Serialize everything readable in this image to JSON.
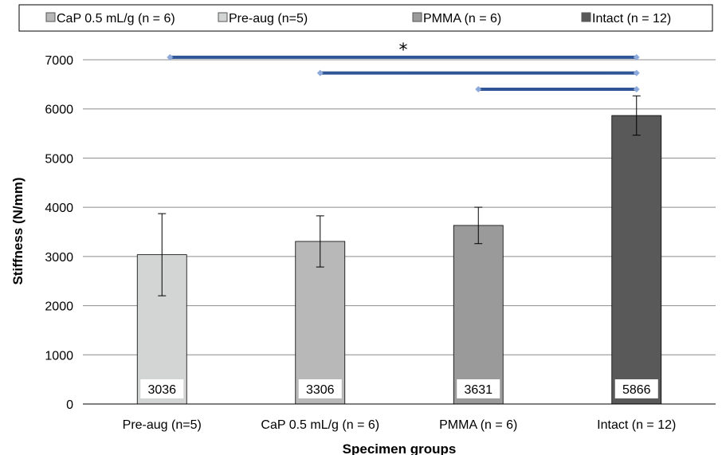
{
  "chart_data": {
    "type": "bar",
    "title": "",
    "xlabel": "Specimen groups",
    "ylabel": "Stiffness (N/mm)",
    "ylim": [
      0,
      7000
    ],
    "yticks": [
      "0",
      "1000",
      "2000",
      "3000",
      "4000",
      "5000",
      "6000",
      "7000"
    ],
    "grid": true,
    "legend_position": "top",
    "categories": [
      "Pre-aug (n=5)",
      "CaP 0.5 mL/g (n = 6)",
      "PMMA (n = 6)",
      "Intact (n = 12)"
    ],
    "values": [
      3036,
      3306,
      3631,
      5866
    ],
    "value_labels": [
      "3036",
      "3306",
      "3631",
      "5866"
    ],
    "error": [
      835,
      520,
      370,
      400
    ],
    "colors": [
      "#d3d5d4",
      "#b8b8b8",
      "#9a9a9a",
      "#595959"
    ],
    "legend": [
      {
        "label": "CaP 0.5 mL/g (n = 6)",
        "color": "#b8b8b8"
      },
      {
        "label": "Pre-aug (n=5)",
        "color": "#d3d5d4"
      },
      {
        "label": "PMMA (n = 6)",
        "color": "#9a9a9a"
      },
      {
        "label": "Intact (n = 12)",
        "color": "#595959"
      }
    ],
    "significance": {
      "symbol": "*",
      "bar_color": "#2f5597",
      "brackets": [
        {
          "from": 0,
          "to": 3,
          "y": 7050
        },
        {
          "from": 1,
          "to": 3,
          "y": 6730
        },
        {
          "from": 2,
          "to": 3,
          "y": 6400
        }
      ]
    }
  }
}
